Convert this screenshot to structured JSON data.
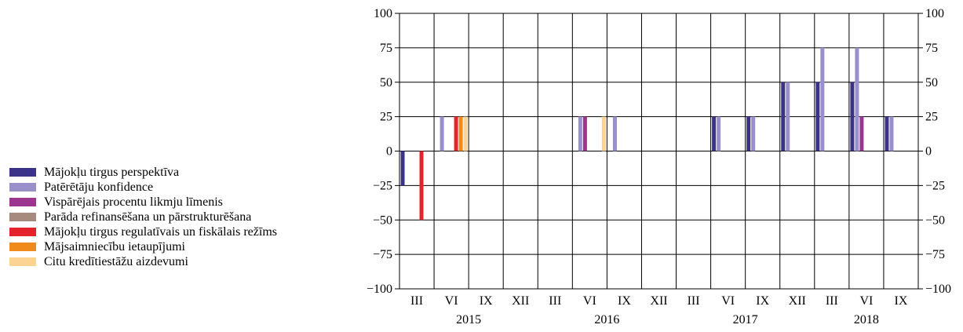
{
  "chart_data": {
    "type": "bar",
    "categories": [
      "III",
      "VI",
      "IX",
      "XII",
      "III",
      "VI",
      "IX",
      "XII",
      "III",
      "VI",
      "IX",
      "XII",
      "III",
      "VI",
      "IX"
    ],
    "years": [
      {
        "label": "2015",
        "start": 0,
        "end": 3
      },
      {
        "label": "2016",
        "start": 4,
        "end": 7
      },
      {
        "label": "2017",
        "start": 8,
        "end": 11
      },
      {
        "label": "2018",
        "start": 12,
        "end": 14
      }
    ],
    "ylim": [
      -100,
      100
    ],
    "yticks": [
      100,
      75,
      50,
      25,
      0,
      -25,
      -50,
      -75,
      -100
    ],
    "ytick_labels": [
      "100",
      "75",
      "50",
      "25",
      "0",
      "−25",
      "−50",
      "−75",
      "−100"
    ],
    "right_axis": true,
    "grid": true,
    "legend_position": "left",
    "series": [
      {
        "name": "Mājokļu tirgus perspektīva",
        "color": "#3b3486",
        "values": [
          -25,
          0,
          0,
          0,
          0,
          0,
          0,
          0,
          0,
          25,
          25,
          50,
          50,
          50,
          25
        ]
      },
      {
        "name": "Patērētāju konfidence",
        "color": "#9a8fcb",
        "values": [
          0,
          25,
          0,
          0,
          0,
          25,
          25,
          0,
          0,
          25,
          25,
          50,
          75,
          75,
          25
        ]
      },
      {
        "name": "Vispārējais procentu likmju līmenis",
        "color": "#9b3590",
        "values": [
          0,
          0,
          0,
          0,
          0,
          25,
          0,
          0,
          0,
          0,
          0,
          0,
          0,
          25,
          0
        ]
      },
      {
        "name": "Parāda refinansēšana un pārstrukturēšana",
        "color": "#a68a7e",
        "values": [
          0,
          0,
          0,
          0,
          0,
          0,
          0,
          0,
          0,
          0,
          0,
          0,
          0,
          0,
          0
        ]
      },
      {
        "name": "Mājokļu tirgus regulatīvais un fiskālais režīms",
        "color": "#e5232c",
        "values": [
          -50,
          25,
          0,
          0,
          0,
          0,
          0,
          0,
          0,
          0,
          0,
          0,
          0,
          0,
          0
        ]
      },
      {
        "name": "Mājsaimniecību ietaupījumi",
        "color": "#f08a1c",
        "values": [
          0,
          25,
          0,
          0,
          0,
          0,
          0,
          0,
          0,
          0,
          0,
          0,
          0,
          0,
          0
        ]
      },
      {
        "name": "Citu kredītiestāžu aizdevumi",
        "color": "#fcd393",
        "values": [
          0,
          25,
          0,
          0,
          0,
          25,
          0,
          0,
          0,
          0,
          0,
          0,
          0,
          0,
          0
        ]
      }
    ]
  }
}
